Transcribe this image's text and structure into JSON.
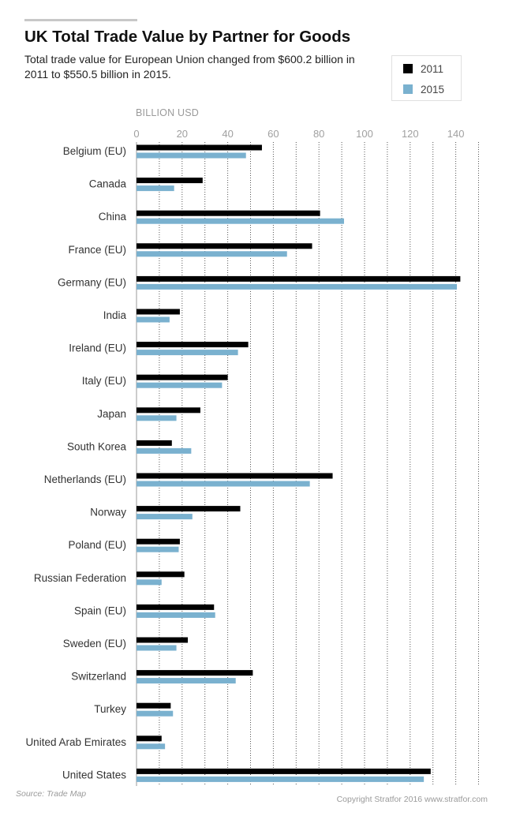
{
  "title": "UK Total Trade Value by Partner for Goods",
  "subtitle": "Total trade value for European Union changed from $600.2 billion in 2011 to $550.5 billion in 2015.",
  "unit_label": "BILLION USD",
  "source": "Source: Trade Map",
  "copyright": "Copyright Stratfor 2016   www.stratfor.com",
  "colors": {
    "2011": "#000000",
    "2015": "#7ab1cf",
    "grid": "#555555"
  },
  "chart_data": {
    "type": "bar",
    "orientation": "horizontal",
    "title": "UK Total Trade Value by Partner for Goods",
    "xlabel": "BILLION USD",
    "ylabel": "",
    "xlim": [
      0,
      150
    ],
    "xticks": [
      0,
      20,
      40,
      60,
      80,
      100,
      120,
      140
    ],
    "grid": true,
    "legend_position": "top-right",
    "categories": [
      "Belgium (EU)",
      "Canada",
      "China",
      "France (EU)",
      "Germany (EU)",
      "India",
      "Ireland (EU)",
      "Italy (EU)",
      "Japan",
      "South Korea",
      "Netherlands (EU)",
      "Norway",
      "Poland (EU)",
      "Russian Federation",
      "Spain (EU)",
      "Sweden (EU)",
      "Switzerland",
      "Turkey",
      "United Arab Emirates",
      "United States"
    ],
    "series": [
      {
        "name": "2011",
        "color": "#000000",
        "values": [
          55,
          29,
          80.5,
          77,
          142,
          19,
          49,
          40,
          28,
          15.5,
          86,
          45.5,
          19,
          21,
          34,
          22.5,
          51,
          15,
          11,
          129
        ]
      },
      {
        "name": "2015",
        "color": "#7ab1cf",
        "values": [
          48,
          16.5,
          91,
          66,
          140.5,
          14.5,
          44.5,
          37.5,
          17.5,
          24,
          76,
          24.5,
          18.5,
          11,
          34.5,
          17.5,
          43.5,
          16,
          12.5,
          126
        ]
      }
    ]
  }
}
